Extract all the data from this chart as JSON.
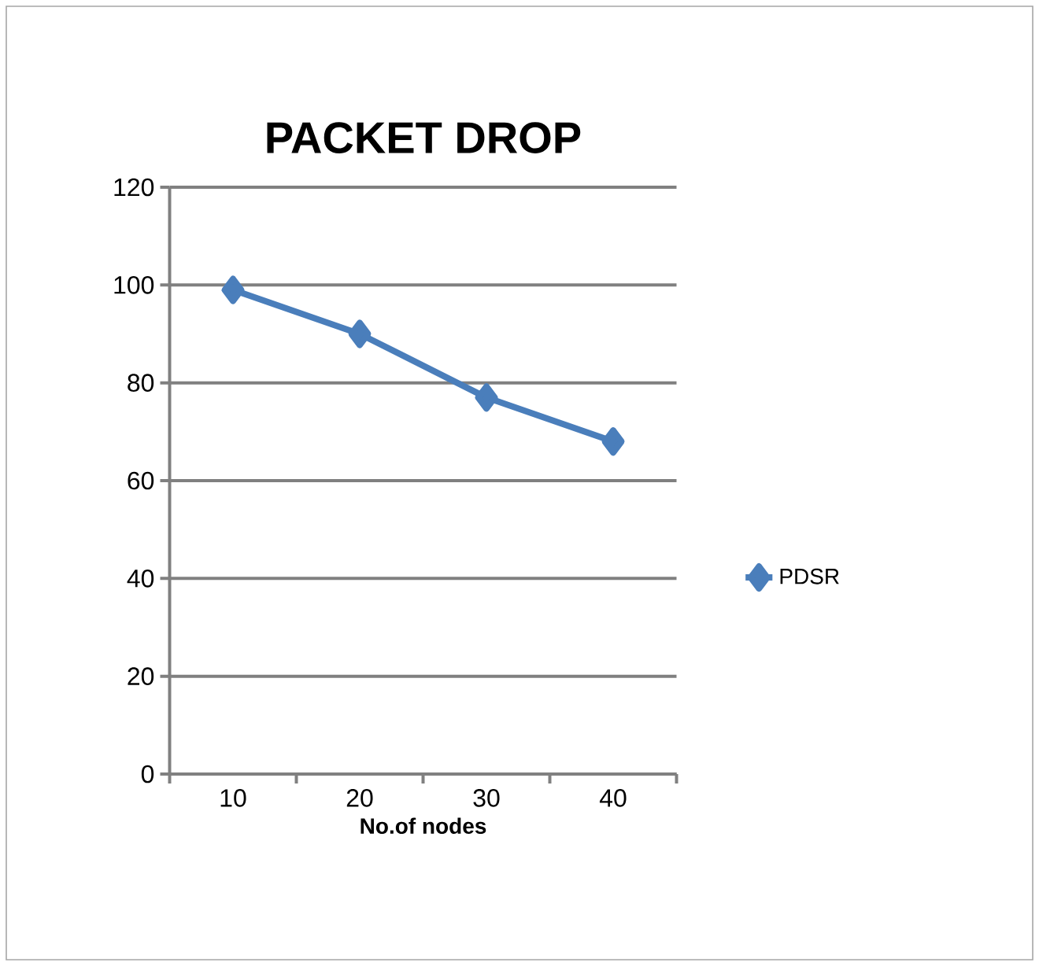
{
  "chart_data": {
    "type": "line",
    "title": "PACKET DROP",
    "xlabel": "No.of nodes",
    "categories": [
      "10",
      "20",
      "30",
      "40"
    ],
    "series": [
      {
        "name": "PDSR",
        "color": "#4a7ebb",
        "values": [
          99,
          90,
          77,
          68
        ]
      }
    ],
    "ylim": [
      0,
      120
    ],
    "yticks": [
      0,
      20,
      40,
      60,
      80,
      100,
      120
    ],
    "grid": "y",
    "legend": "right",
    "marker": "diamond",
    "line_style": "solid"
  }
}
